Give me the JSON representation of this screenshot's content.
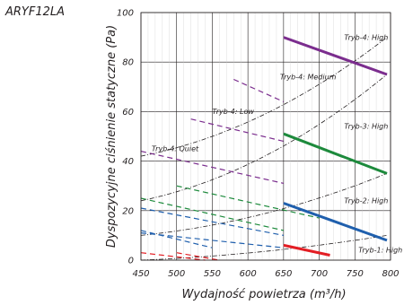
{
  "model": "ARYF12LA",
  "chart_data": {
    "type": "line",
    "xlabel": "Wydajność powietrza (m³/h)",
    "ylabel": "Dyspozycyjne ciśnienie statyczne (Pa)",
    "xlim": [
      450,
      800
    ],
    "ylim": [
      0,
      100
    ],
    "x_ticks": [
      "450",
      "500",
      "550",
      "600",
      "650",
      "700",
      "750",
      "800"
    ],
    "y_ticks": [
      "0",
      "20",
      "40",
      "60",
      "80",
      "100"
    ],
    "grid": true,
    "series": [
      {
        "name": "Tryb-4: High",
        "color": "#7b2d8e",
        "style": "solid",
        "x": [
          650,
          795
        ],
        "y": [
          90,
          75
        ]
      },
      {
        "name": "Tryb-4: Medium",
        "color": "#7b2d8e",
        "style": "dashed",
        "x": [
          580,
          650
        ],
        "y": [
          73,
          64
        ]
      },
      {
        "name": "Tryb-4: Low",
        "color": "#7b2d8e",
        "style": "dashed",
        "x": [
          520,
          650
        ],
        "y": [
          57,
          48
        ]
      },
      {
        "name": "Tryb-4: Quiet",
        "color": "#7b2d8e",
        "style": "dashed",
        "x": [
          450,
          650
        ],
        "y": [
          44,
          31
        ]
      },
      {
        "name": "Tryb-3: High",
        "color": "#1d8a3c",
        "style": "solid",
        "x": [
          650,
          795
        ],
        "y": [
          51,
          35
        ]
      },
      {
        "name": "",
        "color": "#1d8a3c",
        "style": "dashed",
        "x": [
          450,
          650
        ],
        "y": [
          25,
          12
        ]
      },
      {
        "name": "",
        "color": "#1d8a3c",
        "style": "dashed",
        "x": [
          500,
          700
        ],
        "y": [
          30,
          17
        ]
      },
      {
        "name": "Tryb-2: High",
        "color": "#1f5fad",
        "style": "solid",
        "x": [
          650,
          795
        ],
        "y": [
          23,
          8
        ]
      },
      {
        "name": "",
        "color": "#1f5fad",
        "style": "dashed",
        "x": [
          450,
          650
        ],
        "y": [
          11,
          5
        ]
      },
      {
        "name": "",
        "color": "#1f5fad",
        "style": "dashed",
        "x": [
          450,
          650
        ],
        "y": [
          21,
          10
        ]
      },
      {
        "name": "",
        "color": "#1f5fad",
        "style": "dashed",
        "x": [
          450,
          550
        ],
        "y": [
          12,
          5
        ]
      },
      {
        "name": "Tryb-1: High",
        "color": "#e31e24",
        "style": "solid",
        "x": [
          650,
          715
        ],
        "y": [
          6,
          2
        ]
      },
      {
        "name": "",
        "color": "#e31e24",
        "style": "dashed",
        "x": [
          450,
          540
        ],
        "y": [
          3,
          0
        ]
      },
      {
        "name": "",
        "color": "#e31e24",
        "style": "dashed",
        "x": [
          500,
          560
        ],
        "y": [
          3,
          0
        ]
      }
    ],
    "resistance_curves": [
      {
        "x": [
          450,
          795
        ],
        "y": [
          0,
          10
        ]
      },
      {
        "x": [
          450,
          795
        ],
        "y": [
          10,
          35
        ]
      },
      {
        "x": [
          450,
          795
        ],
        "y": [
          24,
          75
        ]
      },
      {
        "x": [
          450,
          795
        ],
        "y": [
          42,
          90
        ]
      }
    ],
    "annotations": [
      {
        "text": "Tryb-4: High",
        "x": 735,
        "y": 89
      },
      {
        "text": "Tryb-4: Medium",
        "x": 645,
        "y": 73
      },
      {
        "text": "Tryb-4: Low",
        "x": 550,
        "y": 59
      },
      {
        "text": "Tryb-4: Quiet",
        "x": 465,
        "y": 44
      },
      {
        "text": "Tryb-3: High",
        "x": 735,
        "y": 53
      },
      {
        "text": "Tryb-2: High",
        "x": 735,
        "y": 23
      },
      {
        "text": "Tryb-1: High",
        "x": 755,
        "y": 3
      }
    ]
  }
}
